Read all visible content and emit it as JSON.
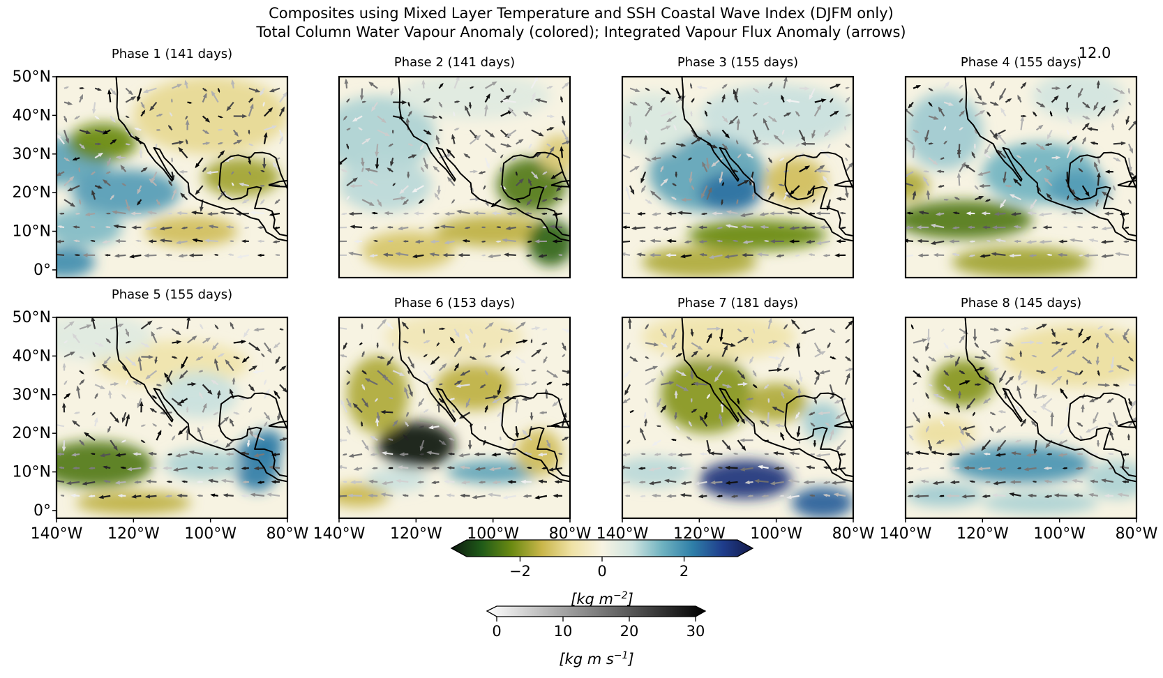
{
  "title_line1": "Composites using Mixed Layer Temperature and SSH Coastal Wave Index (DJFM only)",
  "title_line2": "Total Column Water Vapour Anomaly (colored); Integrated Vapour Flux Anomaly (arrows)",
  "quiver_key_label": "12.0",
  "colors": {
    "tcwv_cmap": [
      "#0d1a0f",
      "#1f5a18",
      "#6b8a12",
      "#c9b64a",
      "#efe2a6",
      "#f7f3e2",
      "#cfe4e0",
      "#6fb2c0",
      "#2f7fa8",
      "#1f3d8c",
      "#141a4a"
    ],
    "flux_cmap": [
      "#ffffff",
      "#a8a8a8",
      "#555555",
      "#000000"
    ],
    "coastline": "#000000"
  },
  "chart_data": {
    "type": "heatmap",
    "panels": [
      {
        "title": "Phase 1 (141 days)"
      },
      {
        "title": "Phase 2 (141 days)"
      },
      {
        "title": "Phase 3 (155 days)"
      },
      {
        "title": "Phase 4 (155 days)"
      },
      {
        "title": "Phase 5 (155 days)"
      },
      {
        "title": "Phase 6 (153 days)"
      },
      {
        "title": "Phase 7 (181 days)"
      },
      {
        "title": "Phase 8 (145 days)"
      }
    ],
    "x_ticks": [
      "140°W",
      "120°W",
      "100°W",
      "80°W"
    ],
    "y_ticks": [
      "50°N",
      "40°N",
      "30°N",
      "20°N",
      "10°N",
      "0°"
    ],
    "xlim": [
      -140,
      -80
    ],
    "ylim": [
      -2,
      50
    ],
    "colorbar_tcwv": {
      "ticks": [
        "−2",
        "0",
        "2"
      ],
      "tick_values": [
        -2,
        0,
        2
      ],
      "range": [
        -3.3,
        3.3
      ],
      "label_base": "[kg m",
      "label_sup": "−2",
      "label_close": "]",
      "extend": "both"
    },
    "colorbar_flux": {
      "ticks": [
        "0",
        "10",
        "20",
        "30"
      ],
      "tick_values": [
        0,
        10,
        20,
        30
      ],
      "range": [
        0,
        30
      ],
      "label_base": "[kg m s",
      "label_sup": "−1",
      "label_close": "]",
      "extend": "both"
    }
  }
}
